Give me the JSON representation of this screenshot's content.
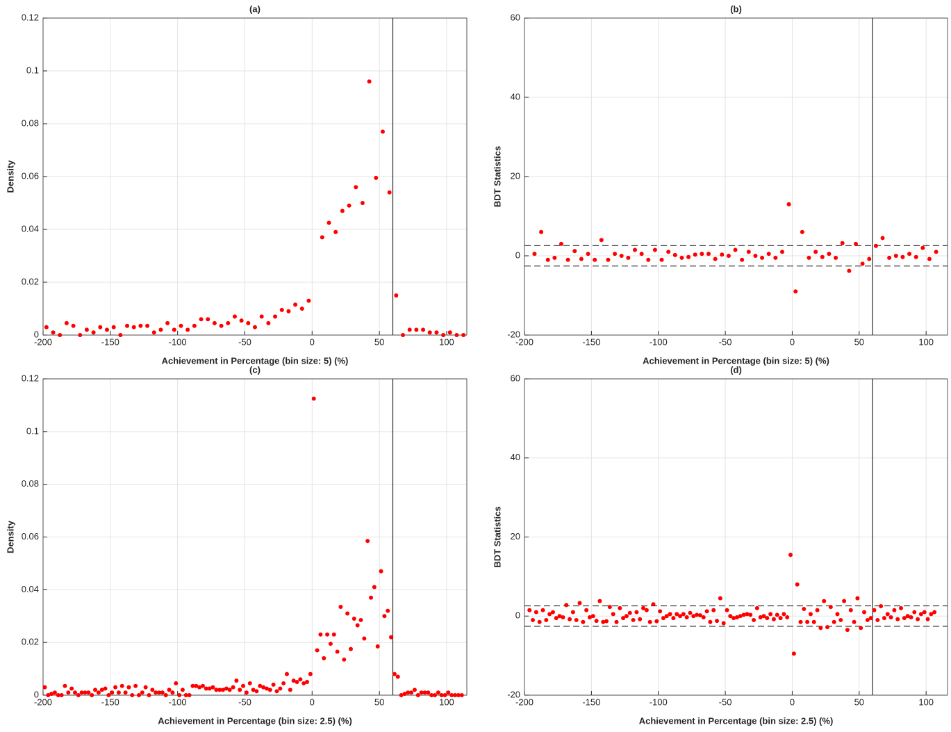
{
  "chart_data": [
    {
      "type": "scatter",
      "title": "(a)",
      "x_label": "Achievement in Percentage (bin size: 5) (%)",
      "y_label": "Density",
      "color": "#ff0000",
      "grid": true,
      "xlim": [
        -200,
        115
      ],
      "ylim": [
        0,
        0.12
      ],
      "xticks": [
        -200,
        -150,
        -100,
        -50,
        0,
        50,
        100
      ],
      "yticks": [
        0,
        0.02,
        0.04,
        0.06,
        0.08,
        0.1,
        0.12
      ],
      "vline": 60,
      "x": [
        -197.5,
        -192.5,
        -187.5,
        -182.5,
        -177.5,
        -172.5,
        -167.5,
        -162.5,
        -157.5,
        -152.5,
        -147.5,
        -142.5,
        -137.5,
        -132.5,
        -127.5,
        -122.5,
        -117.5,
        -112.5,
        -107.5,
        -102.5,
        -97.5,
        -92.5,
        -87.5,
        -82.5,
        -77.5,
        -72.5,
        -67.5,
        -62.5,
        -57.5,
        -52.5,
        -47.5,
        -42.5,
        -37.5,
        -32.5,
        -27.5,
        -22.5,
        -17.5,
        -12.5,
        -7.5,
        -2.5,
        7.5,
        12.5,
        17.5,
        22.5,
        27.5,
        32.5,
        37.5,
        42.5,
        47.5,
        52.5,
        57.5,
        62.5,
        67.5,
        72.5,
        77.5,
        82.5,
        87.5,
        92.5,
        97.5,
        102.5,
        107.5,
        112.5
      ],
      "values": [
        0.003,
        0.001,
        0,
        0.0045,
        0.0035,
        0,
        0.002,
        0.001,
        0.003,
        0.002,
        0.003,
        0,
        0.0035,
        0.003,
        0.0035,
        0.0035,
        0.001,
        0.002,
        0.0045,
        0.002,
        0.0035,
        0.002,
        0.0035,
        0.006,
        0.006,
        0.0045,
        0.0035,
        0.0045,
        0.007,
        0.0055,
        0.0045,
        0.003,
        0.007,
        0.0045,
        0.007,
        0.0095,
        0.009,
        0.0115,
        0.01,
        0.013,
        0.037,
        0.0425,
        0.039,
        0.047,
        0.049,
        0.056,
        0.05,
        0.096,
        0.0595,
        0.077,
        0.054,
        0.015,
        0,
        0.002,
        0.002,
        0.002,
        0.001,
        0.001,
        0,
        0.001,
        0,
        0
      ]
    },
    {
      "type": "scatter",
      "title": "(b)",
      "x_label": "Achievement in Percentage (bin size: 5) (%)",
      "y_label": "BDT Statistics",
      "color": "#ff0000",
      "grid": true,
      "xlim": [
        -200,
        116
      ],
      "ylim": [
        -20,
        60
      ],
      "xticks": [
        -200,
        -150,
        -100,
        -50,
        0,
        50,
        100
      ],
      "yticks": [
        -20,
        0,
        20,
        40,
        60
      ],
      "vline": 60,
      "hlines": [
        -2.58,
        2.58
      ],
      "x": [
        -192.5,
        -187.5,
        -182.5,
        -177.5,
        -172.5,
        -167.5,
        -162.5,
        -157.5,
        -152.5,
        -147.5,
        -142.5,
        -137.5,
        -132.5,
        -127.5,
        -122.5,
        -117.5,
        -112.5,
        -107.5,
        -102.5,
        -97.5,
        -92.5,
        -87.5,
        -82.5,
        -77.5,
        -72.5,
        -67.5,
        -62.5,
        -57.5,
        -52.5,
        -47.5,
        -42.5,
        -37.5,
        -32.5,
        -27.5,
        -22.5,
        -17.5,
        -12.5,
        -7.5,
        -2.5,
        2.5,
        7.5,
        12.5,
        17.5,
        22.5,
        27.5,
        32.5,
        37.5,
        42.5,
        47.5,
        52.5,
        57.5,
        62.5,
        67.5,
        72.5,
        77.5,
        82.5,
        87.5,
        92.5,
        97.5,
        102.5,
        107.5
      ],
      "values": [
        0.5,
        6,
        -1,
        -0.5,
        3,
        -1,
        1.2,
        -0.8,
        0.5,
        -1,
        4,
        -1,
        0.5,
        0,
        -0.5,
        1.5,
        0.5,
        -1,
        1.5,
        -1,
        1,
        0.2,
        -0.5,
        -0.3,
        0.3,
        0.5,
        0.5,
        -0.8,
        0.3,
        0,
        1.5,
        -1,
        1,
        0,
        -0.5,
        0.5,
        -0.5,
        1,
        13,
        -9,
        6,
        -0.5,
        1,
        -0.3,
        0.5,
        -0.5,
        3.2,
        -3.8,
        3,
        -2,
        -0.8,
        2.5,
        4.5,
        -0.5,
        0,
        -0.3,
        0.5,
        -0.3,
        2,
        -0.8,
        1
      ]
    },
    {
      "type": "scatter",
      "title": "(c)",
      "x_label": "Achievement in Percentage (bin size: 2.5) (%)",
      "y_label": "Density",
      "color": "#ff0000",
      "grid": true,
      "xlim": [
        -200,
        115
      ],
      "ylim": [
        0,
        0.12
      ],
      "xticks": [
        -200,
        -150,
        -100,
        -50,
        0,
        50,
        100
      ],
      "yticks": [
        0,
        0.02,
        0.04,
        0.06,
        0.08,
        0.1,
        0.12
      ],
      "vline": 60,
      "x": [
        -198.75,
        -196.25,
        -193.75,
        -191.25,
        -188.75,
        -186.25,
        -183.75,
        -181.25,
        -178.75,
        -176.25,
        -173.75,
        -171.25,
        -168.75,
        -166.25,
        -163.75,
        -161.25,
        -158.75,
        -156.25,
        -153.75,
        -151.25,
        -148.75,
        -146.25,
        -143.75,
        -141.25,
        -138.75,
        -136.25,
        -133.75,
        -131.25,
        -128.75,
        -126.25,
        -123.75,
        -121.25,
        -118.75,
        -116.25,
        -113.75,
        -111.25,
        -108.75,
        -106.25,
        -103.75,
        -101.25,
        -98.75,
        -96.25,
        -93.75,
        -91.25,
        -88.75,
        -86.25,
        -83.75,
        -81.25,
        -78.75,
        -76.25,
        -73.75,
        -71.25,
        -68.75,
        -66.25,
        -63.75,
        -61.25,
        -58.75,
        -56.25,
        -53.75,
        -51.25,
        -48.75,
        -46.25,
        -43.75,
        -41.25,
        -38.75,
        -36.25,
        -33.75,
        -31.25,
        -28.75,
        -26.25,
        -23.75,
        -21.25,
        -18.75,
        -16.25,
        -13.75,
        -11.25,
        -8.75,
        -6.25,
        -3.75,
        -1.25,
        1.25,
        3.75,
        6.25,
        8.75,
        11.25,
        13.75,
        16.25,
        18.75,
        21.25,
        23.75,
        26.25,
        28.75,
        31.25,
        33.75,
        36.25,
        38.75,
        41.25,
        43.75,
        46.25,
        48.75,
        51.25,
        53.75,
        56.25,
        58.75,
        61.25,
        63.75,
        66.25,
        68.75,
        71.25,
        73.75,
        76.25,
        78.75,
        81.25,
        83.75,
        86.25,
        88.75,
        91.25,
        93.75,
        96.25,
        98.75,
        101.25,
        103.75,
        106.25,
        108.75,
        111.25
      ],
      "values": [
        0.003,
        0,
        0.0005,
        0.001,
        0,
        0,
        0.0035,
        0.001,
        0.0025,
        0.001,
        0,
        0.001,
        0.001,
        0.001,
        0,
        0.002,
        0.001,
        0.002,
        0.0025,
        0,
        0.001,
        0.003,
        0.001,
        0.0035,
        0.001,
        0.003,
        0,
        0.0035,
        0,
        0.001,
        0.003,
        0,
        0.002,
        0.001,
        0.001,
        0.001,
        0,
        0.002,
        0.001,
        0.0045,
        0,
        0.002,
        0,
        0,
        0.0035,
        0.0035,
        0.003,
        0.0035,
        0.0025,
        0.0025,
        0.003,
        0.002,
        0.002,
        0.002,
        0.0025,
        0.002,
        0.003,
        0.0055,
        0.002,
        0.0035,
        0.001,
        0.0045,
        0.002,
        0.0015,
        0.0035,
        0.003,
        0.0025,
        0.002,
        0.004,
        0.0015,
        0.0025,
        0.0045,
        0.008,
        0.002,
        0.0055,
        0.005,
        0.006,
        0.0045,
        0.005,
        0.008,
        0.1125,
        0.017,
        0.023,
        0.014,
        0.023,
        0.0195,
        0.023,
        0.0165,
        0.0335,
        0.0135,
        0.031,
        0.0175,
        0.029,
        0.0265,
        0.0285,
        0.0215,
        0.0585,
        0.037,
        0.041,
        0.0185,
        0.047,
        0.03,
        0.032,
        0.022,
        0.008,
        0.007,
        0,
        0.0005,
        0.001,
        0.001,
        0.002,
        0,
        0.001,
        0.001,
        0.001,
        0,
        0,
        0.001,
        0,
        0,
        0.001,
        0,
        0,
        0,
        0
      ]
    },
    {
      "type": "scatter",
      "title": "(d)",
      "x_label": "Achievement in Percentage (bin size: 2.5) (%)",
      "y_label": "BDT Statistics",
      "color": "#ff0000",
      "grid": true,
      "xlim": [
        -200,
        116
      ],
      "ylim": [
        -20,
        60
      ],
      "xticks": [
        -200,
        -150,
        -100,
        -50,
        0,
        50,
        100
      ],
      "yticks": [
        -20,
        0,
        20,
        40,
        60
      ],
      "vline": 60,
      "hlines": [
        -2.58,
        2.58
      ],
      "x": [
        -196.25,
        -193.75,
        -191.25,
        -188.75,
        -186.25,
        -183.75,
        -181.25,
        -178.75,
        -176.25,
        -173.75,
        -171.25,
        -168.75,
        -166.25,
        -163.75,
        -161.25,
        -158.75,
        -156.25,
        -153.75,
        -151.25,
        -148.75,
        -146.25,
        -143.75,
        -141.25,
        -138.75,
        -136.25,
        -133.75,
        -131.25,
        -128.75,
        -126.25,
        -123.75,
        -121.25,
        -118.75,
        -116.25,
        -113.75,
        -111.25,
        -108.75,
        -106.25,
        -103.75,
        -101.25,
        -98.75,
        -96.25,
        -93.75,
        -91.25,
        -88.75,
        -86.25,
        -83.75,
        -81.25,
        -78.75,
        -76.25,
        -73.75,
        -71.25,
        -68.75,
        -66.25,
        -63.75,
        -61.25,
        -58.75,
        -56.25,
        -53.75,
        -51.25,
        -48.75,
        -46.25,
        -43.75,
        -41.25,
        -38.75,
        -36.25,
        -33.75,
        -31.25,
        -28.75,
        -26.25,
        -23.75,
        -21.25,
        -18.75,
        -16.25,
        -13.75,
        -11.25,
        -8.75,
        -6.25,
        -3.75,
        -1.25,
        1.25,
        3.75,
        6.25,
        8.75,
        11.25,
        13.75,
        16.25,
        18.75,
        21.25,
        23.75,
        26.25,
        28.75,
        31.25,
        33.75,
        36.25,
        38.75,
        41.25,
        43.75,
        46.25,
        48.75,
        51.25,
        53.75,
        56.25,
        58.75,
        61.25,
        63.75,
        66.25,
        68.75,
        71.25,
        73.75,
        76.25,
        78.75,
        81.25,
        83.75,
        86.25,
        88.75,
        91.25,
        93.75,
        96.25,
        98.75,
        101.25,
        103.75,
        106.25
      ],
      "values": [
        1.5,
        -1,
        1,
        -1.5,
        1.5,
        -1,
        0.5,
        1,
        -0.5,
        0,
        -0.3,
        2.8,
        -0.8,
        1,
        -1,
        3.3,
        -1.5,
        1.5,
        -0.3,
        0,
        -1.2,
        3.8,
        -1.5,
        -1.3,
        2.3,
        0.5,
        -1.5,
        2,
        -0.5,
        0,
        0.8,
        -1,
        1,
        -0.8,
        2,
        1.5,
        -1.5,
        3,
        -1.3,
        1.2,
        -0.5,
        0,
        0.5,
        -0.5,
        0.5,
        0,
        0.5,
        -0.3,
        0.8,
        0,
        0.3,
        0.2,
        -0.3,
        1.2,
        -1.5,
        1.5,
        -1.2,
        4.5,
        -1.8,
        1.5,
        0,
        -0.5,
        -0.3,
        0,
        0.3,
        0.5,
        0.3,
        -1,
        2,
        -0.3,
        0,
        -0.5,
        0.5,
        -0.8,
        0.3,
        -0.5,
        0.5,
        -0.3,
        15.5,
        -9.5,
        8,
        -1.5,
        1.8,
        -1.5,
        0.5,
        -1.5,
        1.5,
        -3,
        3.8,
        -2.8,
        2.3,
        -1.5,
        0.5,
        -1,
        3.8,
        -3.5,
        1.5,
        -1.5,
        4.5,
        -3,
        1,
        -1,
        -0.5,
        1.5,
        -1,
        2.5,
        -0.5,
        0.5,
        -0.3,
        1.5,
        -0.8,
        2,
        -0.5,
        0,
        -0.3,
        1,
        -0.8,
        0.5,
        1,
        -0.8,
        0.5,
        1
      ]
    }
  ]
}
